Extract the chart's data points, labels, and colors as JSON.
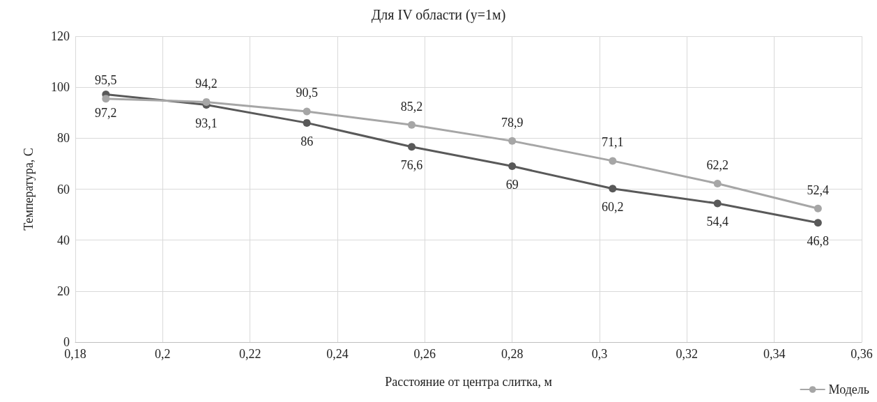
{
  "chart_data": {
    "type": "line",
    "title": "Для IV области (y=1м)",
    "xlabel": "Расстояние от центра слитка, м",
    "ylabel": "Температура, C",
    "x": [
      0.187,
      0.21,
      0.233,
      0.257,
      0.28,
      0.303,
      0.327,
      0.35
    ],
    "series": [
      {
        "color": "#595959",
        "values": [
          97.2,
          93.1,
          86,
          76.6,
          69,
          60.2,
          54.4,
          46.8
        ],
        "value_labels": [
          "97,2",
          "93,1",
          "86",
          "76,6",
          "69",
          "60,2",
          "54,4",
          "46,8"
        ]
      },
      {
        "name": "Модель",
        "color": "#a6a6a6",
        "values": [
          95.5,
          94.2,
          90.5,
          85.2,
          78.9,
          71.1,
          62.2,
          52.4
        ],
        "value_labels": [
          "95,5",
          "94,2",
          "90,5",
          "85,2",
          "78,9",
          "71,1",
          "62,2",
          "52,4"
        ]
      }
    ],
    "xlim": [
      0.18,
      0.36
    ],
    "xticks": [
      {
        "value": 0.18,
        "label": "0,18"
      },
      {
        "value": 0.2,
        "label": "0,2"
      },
      {
        "value": 0.22,
        "label": "0,22"
      },
      {
        "value": 0.24,
        "label": "0,24"
      },
      {
        "value": 0.26,
        "label": "0,26"
      },
      {
        "value": 0.28,
        "label": "0,28"
      },
      {
        "value": 0.3,
        "label": "0,3"
      },
      {
        "value": 0.32,
        "label": "0,32"
      },
      {
        "value": 0.34,
        "label": "0,34"
      },
      {
        "value": 0.36,
        "label": "0,36"
      }
    ],
    "ylim": [
      0,
      120
    ],
    "yticks": [
      0,
      20,
      40,
      60,
      80,
      100,
      120
    ],
    "grid": true,
    "legend": "bottom right",
    "marker": "circle",
    "line_style": "solid"
  }
}
